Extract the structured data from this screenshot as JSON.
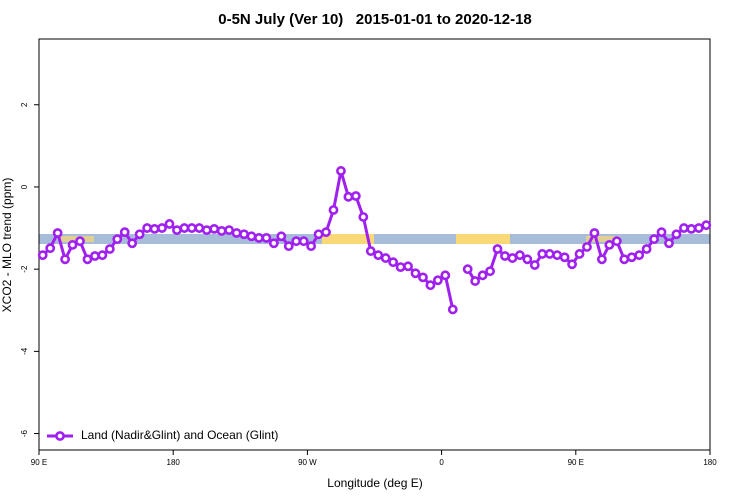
{
  "chart_data": {
    "type": "line",
    "title": "0-5N July (Ver 10)   2015-01-01 to 2020-12-18",
    "x_label": "Longitude (deg E)",
    "y_label": "XCO2 - MLO trend (ppm)",
    "xlim": [
      90,
      540
    ],
    "ylim": [
      -6.4,
      3.6
    ],
    "xticks": [
      {
        "value": 90,
        "label": "90 E"
      },
      180,
      {
        "value": 270,
        "label": "90 W"
      },
      {
        "value": 360,
        "label": "0"
      },
      {
        "value": 450,
        "label": "90 E"
      },
      {
        "value": 540,
        "label": "180"
      }
    ],
    "yticks": [
      2,
      0,
      -2,
      -4,
      -6
    ],
    "legend": "bottom-left",
    "x": [
      92.5,
      97.5,
      102.5,
      107.5,
      112.5,
      117.5,
      122.5,
      127.5,
      132.5,
      137.5,
      142.5,
      147.5,
      152.5,
      157.5,
      162.5,
      167.5,
      172.5,
      177.5,
      182.5,
      187.5,
      192.5,
      197.5,
      202.5,
      207.5,
      212.5,
      217.5,
      222.5,
      227.5,
      232.5,
      237.5,
      242.5,
      247.5,
      252.5,
      257.5,
      262.5,
      267.5,
      272.5,
      277.5,
      282.5,
      287.5,
      292.5,
      297.5,
      302.5,
      307.5,
      312.5,
      317.5,
      322.5,
      327.5,
      332.5,
      337.5,
      342.5,
      347.5,
      352.5,
      357.5,
      362.5,
      367.5,
      372.5,
      377.5,
      382.5,
      387.5,
      392.5,
      397.5,
      402.5,
      407.5,
      412.5,
      417.5,
      422.5,
      427.5,
      432.5,
      437.5,
      442.5,
      447.5,
      452.5,
      457.5,
      462.5,
      467.5,
      472.5,
      477.5,
      482.5,
      487.5,
      492.5,
      497.5,
      502.5,
      507.5,
      512.5,
      517.5,
      522.5,
      527.5,
      532.5,
      537.5
    ],
    "series": [
      {
        "name": "Land (Nadir&Glint) and Ocean (Glint)",
        "color": "#a020f0",
        "values": [
          -1.66,
          -1.49,
          -1.12,
          -1.76,
          -1.41,
          -1.32,
          -1.76,
          -1.68,
          -1.66,
          -1.51,
          -1.27,
          -1.1,
          -1.37,
          -1.15,
          -1.0,
          -1.02,
          -1.0,
          -0.9,
          -1.05,
          -1.0,
          -1.0,
          -1.0,
          -1.05,
          -1.02,
          -1.07,
          -1.05,
          -1.12,
          -1.15,
          -1.2,
          -1.24,
          -1.24,
          -1.37,
          -1.2,
          -1.44,
          -1.32,
          -1.32,
          -1.44,
          -1.15,
          -1.1,
          -0.56,
          0.39,
          -0.24,
          -0.22,
          -0.73,
          -1.56,
          -1.66,
          -1.73,
          -1.83,
          -1.95,
          -1.93,
          -2.1,
          -2.2,
          -2.39,
          -2.27,
          -2.15,
          -2.98,
          null,
          -2.0,
          -2.29,
          -2.15,
          -2.05,
          -1.51,
          -1.68,
          -1.73,
          -1.66,
          -1.76,
          -1.9,
          -1.63,
          -1.63,
          -1.66,
          -1.71,
          -1.88,
          -1.63,
          -1.46,
          -1.12,
          -1.76,
          -1.41,
          -1.32,
          -1.76,
          -1.71,
          -1.66,
          -1.51,
          -1.27,
          -1.1,
          -1.37,
          -1.15,
          -1.0,
          -1.02,
          -1.0,
          -0.93
        ]
      }
    ]
  }
}
